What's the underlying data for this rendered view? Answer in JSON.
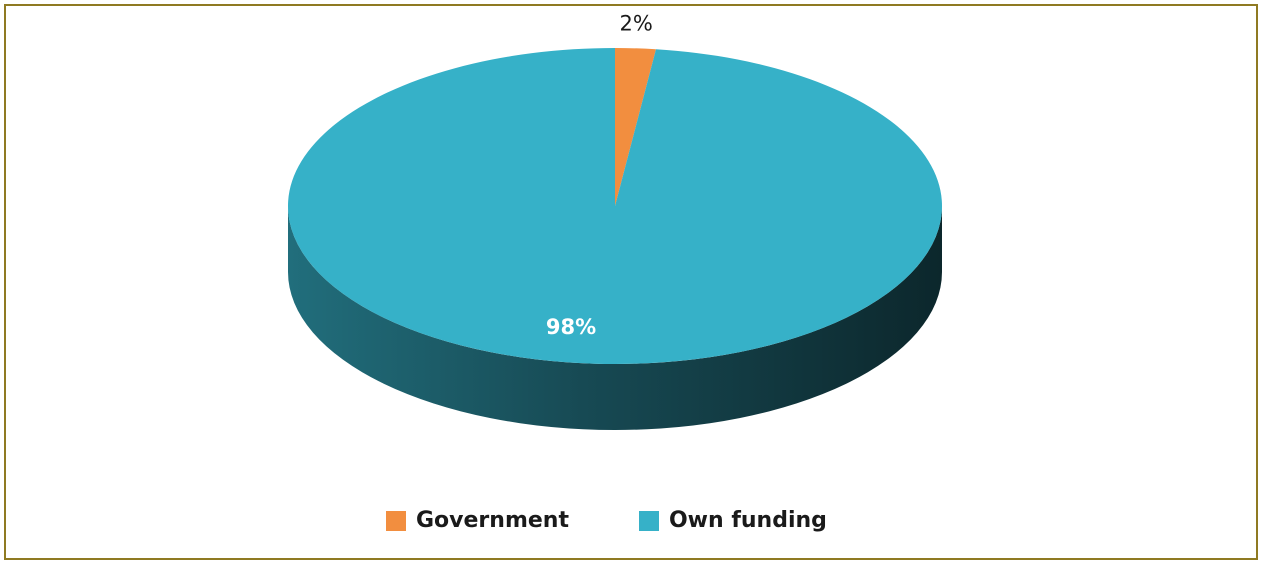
{
  "chart_data": {
    "type": "pie",
    "style": "3d",
    "categories": [
      "Government",
      "Own funding"
    ],
    "values": [
      2,
      98
    ],
    "labels": [
      "2%",
      "98%"
    ],
    "colors": [
      "#f28e3f",
      "#36b1c8"
    ],
    "legend_position": "bottom"
  }
}
